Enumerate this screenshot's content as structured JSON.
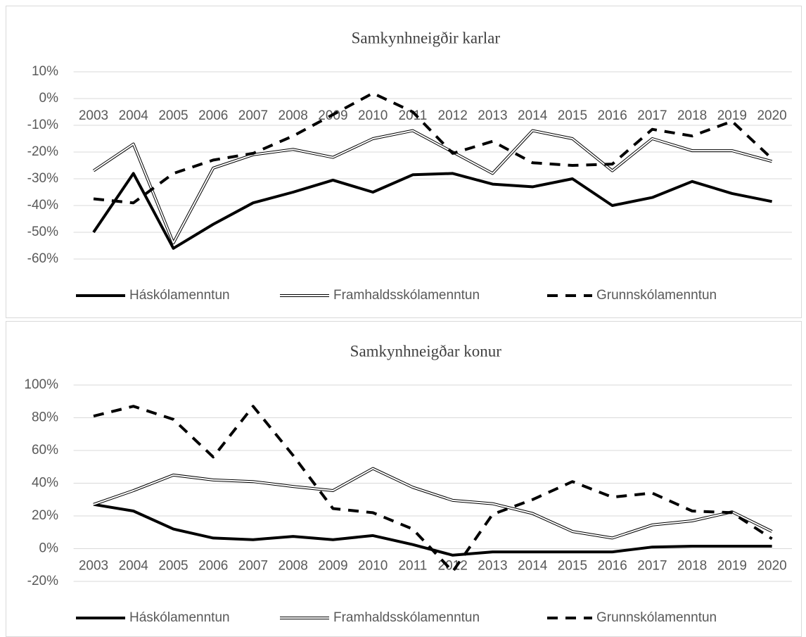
{
  "chart_data": [
    {
      "type": "line",
      "title": "Samkynhneigðir karlar",
      "categories": [
        "2003",
        "2004",
        "2005",
        "2006",
        "2007",
        "2008",
        "2009",
        "2010",
        "2011",
        "2012",
        "2013",
        "2014",
        "2015",
        "2016",
        "2017",
        "2018",
        "2019",
        "2020"
      ],
      "ylim": [
        -60,
        10
      ],
      "yticks": [
        {
          "value": 10,
          "label": "10%"
        },
        {
          "value": 0,
          "label": "0%"
        },
        {
          "value": -10,
          "label": "-10%"
        },
        {
          "value": -20,
          "label": "-20%"
        },
        {
          "value": -30,
          "label": "-30%"
        },
        {
          "value": -40,
          "label": "-40%"
        },
        {
          "value": -50,
          "label": "-50%"
        },
        {
          "value": -60,
          "label": "-60%"
        }
      ],
      "grid": true,
      "legend": "bottom",
      "series": [
        {
          "name": "Háskólamenntun",
          "color": "#000000",
          "style": "solid",
          "values": [
            -50,
            -28,
            -56,
            -47,
            -39,
            -35,
            -30.5,
            -35,
            -28.5,
            -28,
            -32,
            -33,
            -30,
            -40,
            -37,
            -31,
            -35.5,
            -38.5
          ]
        },
        {
          "name": "Framhaldsskólamenntun",
          "color": "#000000",
          "style": "double",
          "values": [
            -27,
            -17,
            -54,
            -26,
            -21,
            -19,
            -22,
            -15,
            -12,
            -20,
            -28,
            -12,
            -15,
            -27,
            -15,
            -19.5,
            -19.5,
            -23.5
          ]
        },
        {
          "name": "Grunnskólamenntun",
          "color": "#000000",
          "style": "dashed",
          "values": [
            -37.5,
            -39,
            -28,
            -23,
            -20.5,
            -14,
            -6,
            2,
            -5,
            -20.5,
            -16,
            -24,
            -25,
            -24.5,
            -11.5,
            -14,
            -8.5,
            -22.5
          ]
        }
      ]
    },
    {
      "type": "line",
      "title": "Samkynhneigðar konur",
      "categories": [
        "2003",
        "2004",
        "2005",
        "2006",
        "2007",
        "2008",
        "2009",
        "2010",
        "2011",
        "2012",
        "2013",
        "2014",
        "2015",
        "2016",
        "2017",
        "2018",
        "2019",
        "2020"
      ],
      "ylim": [
        -20,
        100
      ],
      "yticks": [
        {
          "value": 100,
          "label": "100%"
        },
        {
          "value": 80,
          "label": "80%"
        },
        {
          "value": 60,
          "label": "60%"
        },
        {
          "value": 40,
          "label": "40%"
        },
        {
          "value": 20,
          "label": "20%"
        },
        {
          "value": 0,
          "label": "0%"
        },
        {
          "value": -20,
          "label": "-20%"
        }
      ],
      "grid": true,
      "legend": "bottom",
      "series": [
        {
          "name": "Háskólamenntun",
          "color": "#000000",
          "style": "solid",
          "values": [
            27,
            23,
            12,
            6.5,
            5.5,
            7.5,
            5.5,
            8,
            2.5,
            -4,
            -2,
            -2,
            -2,
            -2,
            1,
            1.5,
            1.5,
            1.5
          ]
        },
        {
          "name": "Framhaldsskólamenntun",
          "color": "#000000",
          "style": "double",
          "values": [
            27,
            35.5,
            45,
            42,
            41,
            38,
            35.5,
            49,
            37.5,
            29.5,
            27.5,
            21.5,
            10.5,
            6.5,
            14.5,
            17,
            22.5,
            10.5
          ]
        },
        {
          "name": "Grunnskólamenntun",
          "color": "#000000",
          "style": "dashed",
          "values": [
            81,
            87,
            79,
            56,
            87,
            57,
            24.5,
            22,
            12,
            -14,
            21,
            30,
            41,
            31.5,
            34,
            23,
            22,
            6
          ]
        }
      ]
    }
  ]
}
